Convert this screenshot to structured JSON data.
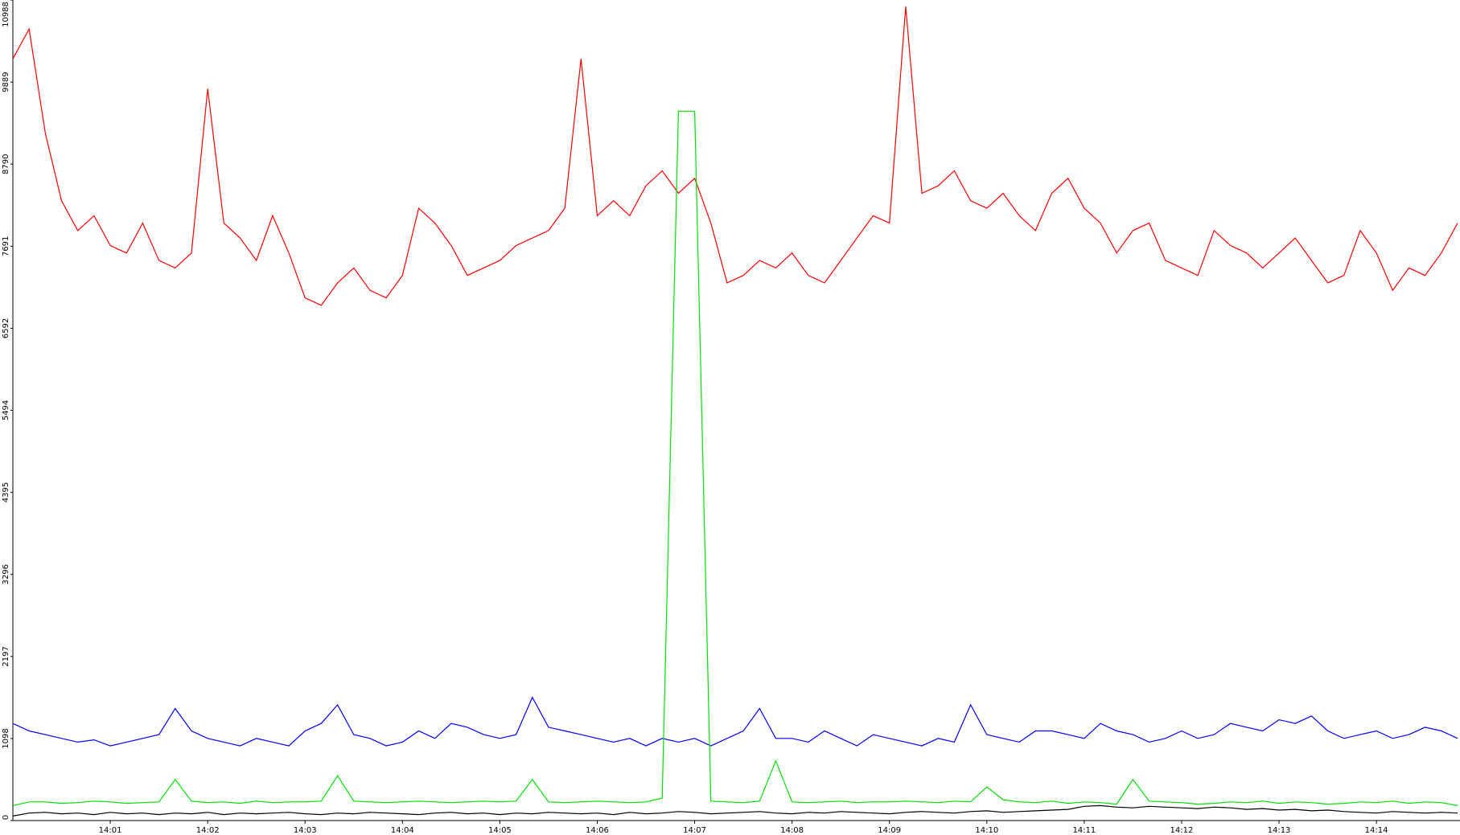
{
  "chart_data": {
    "type": "line",
    "categories": [
      null,
      null,
      null,
      null,
      null,
      null,
      "14:01",
      null,
      null,
      null,
      null,
      null,
      "14:02",
      null,
      null,
      null,
      null,
      null,
      "14:03",
      null,
      null,
      null,
      null,
      null,
      "14:04",
      null,
      null,
      null,
      null,
      null,
      "14:05",
      null,
      null,
      null,
      null,
      null,
      "14:06",
      null,
      null,
      null,
      null,
      null,
      "14:07",
      null,
      null,
      null,
      null,
      null,
      "14:08",
      null,
      null,
      null,
      null,
      null,
      "14:09",
      null,
      null,
      null,
      null,
      null,
      "14:10",
      null,
      null,
      null,
      null,
      null,
      "14:11",
      null,
      null,
      null,
      null,
      null,
      "14:12",
      null,
      null,
      null,
      null,
      null,
      "14:13",
      null,
      null,
      null,
      null,
      null,
      "14:14",
      null,
      null,
      null,
      null,
      null
    ],
    "series": [
      {
        "color": "#ff0000",
        "values": [
          10200,
          10600,
          9200,
          8300,
          7900,
          8100,
          7700,
          7600,
          8000,
          7500,
          7400,
          7600,
          9800,
          8000,
          7800,
          7500,
          8100,
          7600,
          7000,
          6900,
          7200,
          7400,
          7100,
          7000,
          7300,
          8200,
          8000,
          7700,
          7300,
          7400,
          7500,
          7700,
          7800,
          7900,
          8200,
          10200,
          8100,
          8300,
          8100,
          8500,
          8700,
          8400,
          8600,
          8000,
          7200,
          7300,
          7500,
          7400,
          7600,
          7300,
          7200,
          7500,
          7800,
          8100,
          8000,
          10900,
          8400,
          8500,
          8700,
          8300,
          8200,
          8400,
          8100,
          7900,
          8400,
          8600,
          8200,
          8000,
          7600,
          7900,
          8000,
          7500,
          7400,
          7300,
          7900,
          7700,
          7600,
          7400,
          7600,
          7800,
          7500,
          7200,
          7300,
          7900,
          7600,
          7100,
          7400,
          7300,
          7600,
          8000
        ]
      },
      {
        "color": "#0000ff",
        "values": [
          1300,
          1200,
          1150,
          1100,
          1050,
          1080,
          1000,
          1050,
          1100,
          1150,
          1500,
          1200,
          1100,
          1050,
          1000,
          1100,
          1050,
          1000,
          1200,
          1300,
          1550,
          1150,
          1100,
          1000,
          1050,
          1200,
          1100,
          1300,
          1250,
          1150,
          1100,
          1150,
          1650,
          1250,
          1200,
          1150,
          1100,
          1050,
          1100,
          1000,
          1100,
          1050,
          1100,
          1000,
          1100,
          1200,
          1500,
          1100,
          1100,
          1050,
          1200,
          1100,
          1000,
          1150,
          1100,
          1050,
          1000,
          1100,
          1050,
          1550,
          1150,
          1100,
          1050,
          1200,
          1200,
          1150,
          1100,
          1300,
          1200,
          1150,
          1050,
          1100,
          1200,
          1100,
          1150,
          1300,
          1250,
          1200,
          1350,
          1300,
          1400,
          1200,
          1100,
          1150,
          1200,
          1100,
          1150,
          1250,
          1200,
          1100
        ]
      },
      {
        "color": "#00e000",
        "values": [
          200,
          250,
          250,
          230,
          240,
          260,
          250,
          230,
          240,
          250,
          550,
          260,
          240,
          250,
          230,
          260,
          240,
          250,
          250,
          260,
          600,
          260,
          250,
          240,
          250,
          260,
          250,
          240,
          250,
          260,
          250,
          260,
          550,
          250,
          240,
          250,
          260,
          250,
          240,
          250,
          300,
          9500,
          9500,
          260,
          250,
          240,
          260,
          800,
          250,
          240,
          250,
          260,
          240,
          250,
          250,
          260,
          250,
          240,
          260,
          250,
          450,
          280,
          250,
          240,
          260,
          230,
          250,
          240,
          220,
          550,
          260,
          250,
          240,
          220,
          230,
          250,
          240,
          260,
          230,
          250,
          240,
          220,
          230,
          250,
          240,
          260,
          230,
          250,
          240,
          200
        ]
      },
      {
        "color": "#000000",
        "values": [
          60,
          100,
          110,
          90,
          100,
          80,
          110,
          90,
          100,
          80,
          100,
          90,
          110,
          80,
          100,
          90,
          100,
          110,
          90,
          80,
          100,
          90,
          110,
          100,
          90,
          80,
          100,
          110,
          90,
          100,
          80,
          100,
          90,
          110,
          100,
          90,
          100,
          80,
          110,
          90,
          100,
          120,
          110,
          90,
          100,
          110,
          120,
          100,
          90,
          110,
          100,
          120,
          110,
          100,
          90,
          110,
          120,
          110,
          100,
          120,
          130,
          110,
          120,
          130,
          140,
          150,
          190,
          200,
          180,
          170,
          190,
          180,
          170,
          160,
          180,
          170,
          150,
          160,
          140,
          150,
          130,
          140,
          120,
          110,
          100,
          120,
          110,
          100,
          110,
          100
        ]
      }
    ],
    "ylim": [
      0,
      10988
    ],
    "yticks": [
      0,
      1098,
      2197,
      3296,
      4395,
      5494,
      6592,
      7691,
      8790,
      9889,
      10988
    ]
  }
}
